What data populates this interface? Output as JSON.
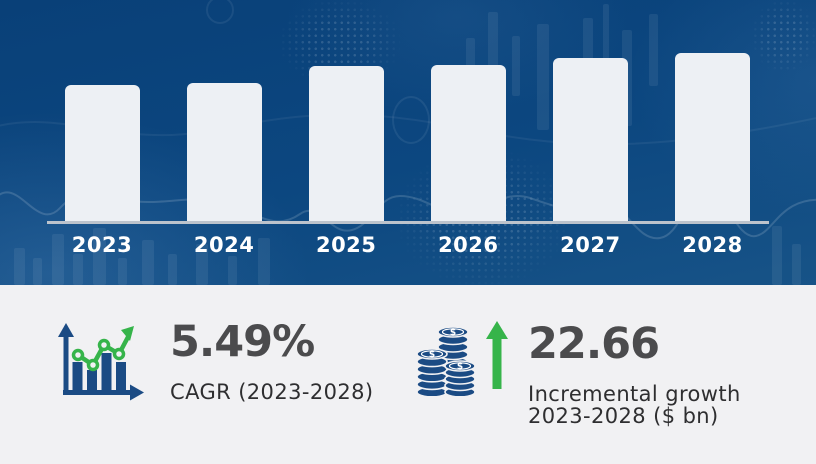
{
  "chart_data": {
    "type": "bar",
    "title": "Market size by year (illustrative bars, y-axis unlabeled)",
    "categories": [
      "2023",
      "2024",
      "2025",
      "2026",
      "2027",
      "2028"
    ],
    "values": [
      138,
      140,
      157,
      158,
      165,
      170
    ],
    "value_unit": "relative bar height in px (no numeric y-axis shown in image)",
    "xlabel": "",
    "ylabel": "",
    "ylim": [
      0,
      185
    ],
    "grid": false,
    "legend": false
  },
  "stats": {
    "cagr": {
      "icon": "bar-chart-trend-icon",
      "value": "5.49%",
      "label": "CAGR (2023-2028)"
    },
    "incremental_growth": {
      "icon": "coin-stack-arrow-up-icon",
      "value": "22.66",
      "label_line1": "Incremental growth",
      "label_line2": "2023-2028 ($ bn)"
    }
  },
  "icons": {
    "currency_symbol": "$"
  },
  "colors": {
    "hero_navy": "#0b4379",
    "panel_bg": "#f1f1f3",
    "icon_navy": "#1b4b84",
    "accent_green": "#36b44a",
    "stat_number": "#4b4b4d",
    "stat_label": "#2e2e30",
    "bar_color": "#edf0f4",
    "axis_color": "#bcc3cc"
  }
}
